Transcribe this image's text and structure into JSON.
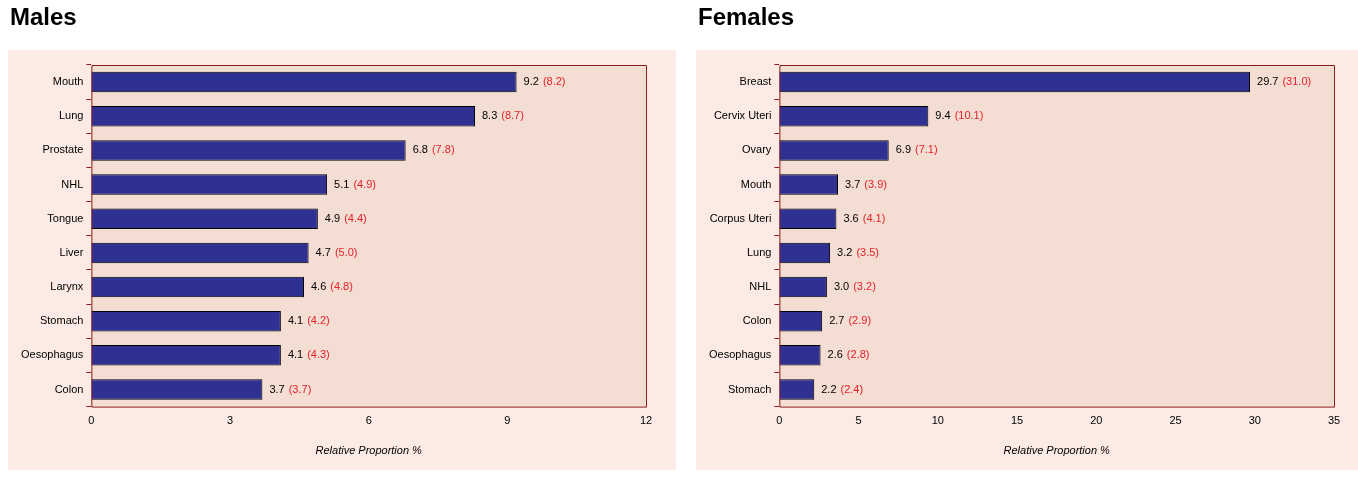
{
  "chart_data": [
    {
      "type": "bar",
      "title": "Males",
      "orientation": "horizontal",
      "xlabel": "Relative Proportion %",
      "categories": [
        "Mouth",
        "Lung",
        "Prostate",
        "NHL",
        "Tongue",
        "Liver",
        "Larynx",
        "Stomach",
        "Oesophagus",
        "Colon"
      ],
      "values": [
        9.2,
        8.3,
        6.8,
        5.1,
        4.9,
        4.7,
        4.6,
        4.1,
        4.1,
        3.7
      ],
      "color": "#2e3192",
      "value_labels": [
        "9.2",
        "8.3",
        "6.8",
        "5.1",
        "4.9",
        "4.7",
        "4.6",
        "4.1",
        "4.1",
        "3.7"
      ],
      "annotations": [
        {
          "text": "(8.2)",
          "x": 9.2,
          "y": "Mouth"
        },
        {
          "text": "(8.7)",
          "x": 8.3,
          "y": "Lung"
        },
        {
          "text": "(7.8)",
          "x": 6.8,
          "y": "Prostate"
        },
        {
          "text": "(4.9)",
          "x": 5.1,
          "y": "NHL"
        },
        {
          "text": "(4.4)",
          "x": 4.9,
          "y": "Tongue"
        },
        {
          "text": "(5.0)",
          "x": 4.7,
          "y": "Liver"
        },
        {
          "text": "(4.8)",
          "x": 4.6,
          "y": "Larynx"
        },
        {
          "text": "(4.2)",
          "x": 4.1,
          "y": "Stomach"
        },
        {
          "text": "(4.3)",
          "x": 4.1,
          "y": "Oesophagus"
        },
        {
          "text": "(3.7)",
          "x": 3.7,
          "y": "Colon"
        }
      ],
      "xlim": [
        0,
        12
      ],
      "xticks": [
        0,
        3,
        6,
        9,
        12
      ],
      "grid": false,
      "legend": false
    },
    {
      "type": "bar",
      "title": "Females",
      "orientation": "horizontal",
      "xlabel": "Relative Proportion %",
      "categories": [
        "Breast",
        "Cervix Uteri",
        "Ovary",
        "Mouth",
        "Corpus Uteri",
        "Lung",
        "NHL",
        "Colon",
        "Oesophagus",
        "Stomach"
      ],
      "values": [
        29.7,
        9.4,
        6.9,
        3.7,
        3.6,
        3.2,
        3.0,
        2.7,
        2.6,
        2.2
      ],
      "color": "#2e3192",
      "value_labels": [
        "29.7",
        "9.4",
        "6.9",
        "3.7",
        "3.6",
        "3.2",
        "3.0",
        "2.7",
        "2.6",
        "2.2"
      ],
      "annotations": [
        {
          "text": "(31.0)",
          "x": 29.7,
          "y": "Breast"
        },
        {
          "text": "(10.1)",
          "x": 9.4,
          "y": "Cervix Uteri"
        },
        {
          "text": "(7.1)",
          "x": 6.9,
          "y": "Ovary"
        },
        {
          "text": "(3.9)",
          "x": 3.7,
          "y": "Mouth"
        },
        {
          "text": "(4.1)",
          "x": 3.6,
          "y": "Corpus Uteri"
        },
        {
          "text": "(3.5)",
          "x": 3.2,
          "y": "Lung"
        },
        {
          "text": "(3.2)",
          "x": 3.0,
          "y": "NHL"
        },
        {
          "text": "(2.9)",
          "x": 2.7,
          "y": "Colon"
        },
        {
          "text": "(2.8)",
          "x": 2.6,
          "y": "Oesophagus"
        },
        {
          "text": "(2.4)",
          "x": 2.2,
          "y": "Stomach"
        }
      ],
      "xlim": [
        0,
        35
      ],
      "xticks": [
        0,
        5,
        10,
        15,
        20,
        25,
        30,
        35
      ],
      "grid": false,
      "legend": false
    }
  ]
}
